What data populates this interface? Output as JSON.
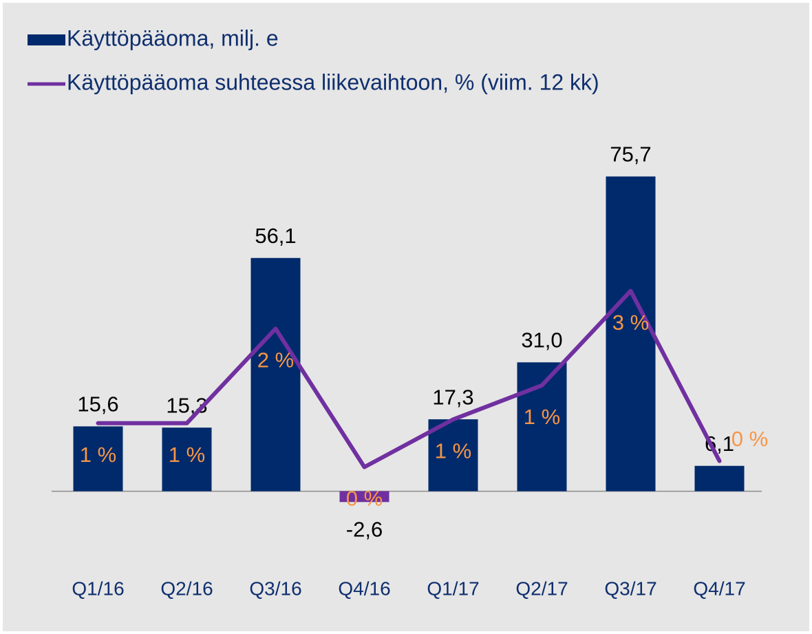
{
  "chart_data": {
    "type": "bar",
    "categories": [
      "Q1/16",
      "Q2/16",
      "Q3/16",
      "Q4/16",
      "Q1/17",
      "Q2/17",
      "Q3/17",
      "Q4/17"
    ],
    "series": [
      {
        "name": "Käyttöpääoma, milj. e",
        "type": "bar",
        "color": "#002a6b",
        "negative_color": "#7030a0",
        "values": [
          15.6,
          15.3,
          56.1,
          -2.6,
          17.3,
          31.0,
          75.7,
          6.1
        ],
        "value_labels": [
          "15,6",
          "15,3",
          "56,1",
          "-2,6",
          "17,3",
          "31,0",
          "75,7",
          "6,1"
        ]
      },
      {
        "name": "Käyttöpääoma suhteessa liikevaihtoon, % (viim. 12 kk)",
        "type": "line",
        "axis": "y2",
        "color": "#7030a0",
        "values": [
          0.95,
          0.95,
          2.2,
          0.37,
          1.0,
          1.45,
          2.7,
          0.45
        ],
        "value_labels": [
          "1 %",
          "1 %",
          "2 %",
          "0 %",
          "1 %",
          "1 %",
          "3 %",
          "0 %"
        ]
      }
    ],
    "ylim": [
      -10,
      90
    ],
    "y2lim": [
      -0.5,
      5
    ],
    "legend": "top-left"
  }
}
